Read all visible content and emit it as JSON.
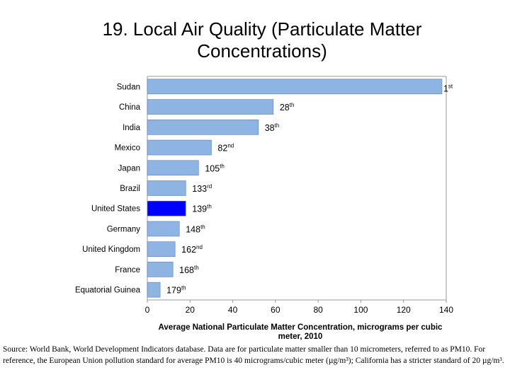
{
  "slide": {
    "title_line1": "19. Local Air Quality (Particulate Matter",
    "title_line2": "Concentrations)",
    "source_text": "Source: World Bank, World Development Indicators database. Data are for particulate matter smaller than 10 micrometers, referred to as PM10. For reference, the European Union pollution standard for average PM10 is 40 micrograms/cubic meter (µg/m³); California has a stricter standard of 20 µg/m³."
  },
  "colors": {
    "bar": "#8eb4e3",
    "highlight": "#0000ff",
    "bar_stroke": "#5a7fb0",
    "axis": "#999999"
  },
  "chart_data": {
    "type": "bar",
    "orientation": "horizontal",
    "categories": [
      "Sudan",
      "China",
      "India",
      "Mexico",
      "Japan",
      "Brazil",
      "United States",
      "Germany",
      "United Kingdom",
      "France",
      "Equatorial Guinea"
    ],
    "values": [
      138,
      59,
      52,
      30,
      24,
      18,
      18,
      15,
      13,
      12,
      6
    ],
    "rank_numbers": [
      "1",
      "28",
      "38",
      "82",
      "105",
      "133",
      "139",
      "148",
      "162",
      "168",
      "179"
    ],
    "rank_suffixes": [
      "st",
      "th",
      "th",
      "nd",
      "th",
      "rd",
      "th",
      "th",
      "nd",
      "th",
      "th"
    ],
    "highlighted_category": "United States",
    "xlabel_line1": "Average National Particulate Matter Concentration, micrograms per cubic",
    "xlabel_line2": "meter, 2010",
    "xlim": [
      0,
      140
    ],
    "xticks": [
      0,
      20,
      40,
      60,
      80,
      100,
      120,
      140
    ],
    "grid": false
  }
}
